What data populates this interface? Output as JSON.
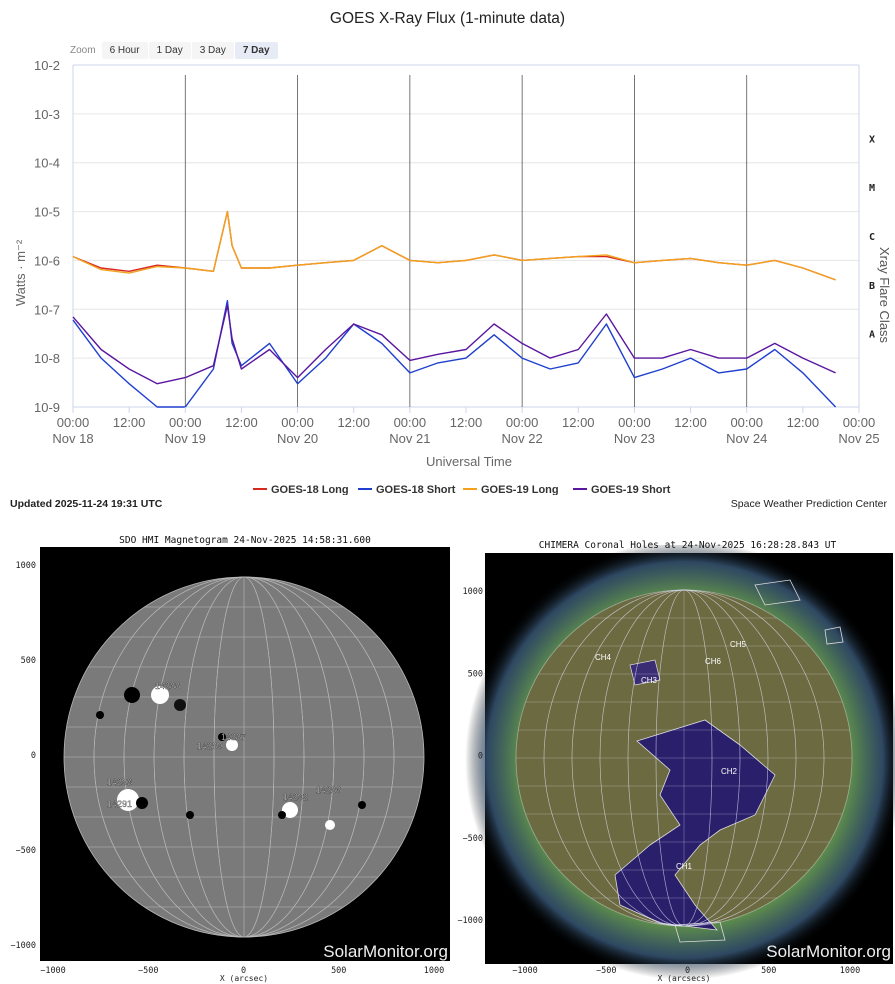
{
  "chart_title": "GOES X-Ray Flux (1-minute data)",
  "zoom": {
    "label": "Zoom",
    "buttons": [
      "6 Hour",
      "1 Day",
      "3 Day",
      "7 Day"
    ],
    "active": "7 Day"
  },
  "legend": [
    "GOES-18 Long",
    "GOES-18 Short",
    "GOES-19 Long",
    "GOES-19 Short"
  ],
  "updated_text": "Updated 2025-11-24 19:31 UTC",
  "credit_text": "Space Weather Prediction Center",
  "colors": {
    "goes18_long": "#d6281e",
    "goes18_short": "#1f3fcf",
    "goes19_long": "#f2a21c",
    "goes19_short": "#5a16a0"
  },
  "chart_data": [
    {
      "type": "line",
      "title": "GOES X-Ray Flux (1-minute data)",
      "xlabel": "Universal Time",
      "ylabel": "Watts · m⁻²",
      "y2label": "Xray Flare Class",
      "y_scale": "log",
      "ylim": [
        1e-09,
        0.01
      ],
      "y_ticks": [
        {
          "base": "10",
          "exp": "-2"
        },
        {
          "base": "10",
          "exp": "-3"
        },
        {
          "base": "10",
          "exp": "-4"
        },
        {
          "base": "10",
          "exp": "-5"
        },
        {
          "base": "10",
          "exp": "-6"
        },
        {
          "base": "10",
          "exp": "-7"
        },
        {
          "base": "10",
          "exp": "-8"
        },
        {
          "base": "10",
          "exp": "-9"
        }
      ],
      "flare_classes": [
        {
          "label": "X",
          "value": 0.0001
        },
        {
          "label": "M",
          "value": 1e-05
        },
        {
          "label": "C",
          "value": 1e-06
        },
        {
          "label": "B",
          "value": 1e-07
        },
        {
          "label": "A",
          "value": 1e-08
        }
      ],
      "x_ticks": [
        {
          "time": "00:00",
          "date": "Nov 18"
        },
        {
          "time": "12:00",
          "date": ""
        },
        {
          "time": "00:00",
          "date": "Nov 19"
        },
        {
          "time": "12:00",
          "date": ""
        },
        {
          "time": "00:00",
          "date": "Nov 20"
        },
        {
          "time": "12:00",
          "date": ""
        },
        {
          "time": "00:00",
          "date": "Nov 21"
        },
        {
          "time": "12:00",
          "date": ""
        },
        {
          "time": "00:00",
          "date": "Nov 22"
        },
        {
          "time": "12:00",
          "date": ""
        },
        {
          "time": "00:00",
          "date": "Nov 23"
        },
        {
          "time": "12:00",
          "date": ""
        },
        {
          "time": "00:00",
          "date": "Nov 24"
        },
        {
          "time": "12:00",
          "date": ""
        },
        {
          "time": "00:00",
          "date": "Nov 25"
        }
      ],
      "x_range": [
        "2025-11-18 00:00",
        "2025-11-25 00:00"
      ],
      "series_x": [
        "2025-11-18 00:00",
        "2025-11-18 06:00",
        "2025-11-18 12:00",
        "2025-11-18 18:00",
        "2025-11-19 00:00",
        "2025-11-19 06:00",
        "2025-11-19 09:00",
        "2025-11-19 10:00",
        "2025-11-19 12:00",
        "2025-11-19 18:00",
        "2025-11-20 00:00",
        "2025-11-20 06:00",
        "2025-11-20 12:00",
        "2025-11-20 18:00",
        "2025-11-21 00:00",
        "2025-11-21 06:00",
        "2025-11-21 12:00",
        "2025-11-21 18:00",
        "2025-11-22 00:00",
        "2025-11-22 06:00",
        "2025-11-22 12:00",
        "2025-11-22 18:00",
        "2025-11-23 00:00",
        "2025-11-23 06:00",
        "2025-11-23 12:00",
        "2025-11-23 18:00",
        "2025-11-24 00:00",
        "2025-11-24 06:00",
        "2025-11-24 12:00",
        "2025-11-24 19:00"
      ],
      "series": [
        {
          "name": "GOES-18 Long",
          "color": "#d6281e",
          "values": [
            1.2e-06,
            7e-07,
            6e-07,
            8e-07,
            7e-07,
            6e-07,
            1e-05,
            2e-06,
            7e-07,
            7e-07,
            8e-07,
            9e-07,
            1e-06,
            2e-06,
            1e-06,
            9e-07,
            1e-06,
            1.3e-06,
            1e-06,
            1.1e-06,
            1.2e-06,
            1.2e-06,
            9e-07,
            1e-06,
            1.1e-06,
            9e-07,
            8e-07,
            1e-06,
            7e-07,
            4e-07
          ]
        },
        {
          "name": "GOES-18 Short",
          "color": "#1f3fcf",
          "values": [
            6e-08,
            1e-08,
            3e-09,
            1e-09,
            1e-09,
            6e-09,
            1.5e-07,
            2e-08,
            7e-09,
            2e-08,
            3e-09,
            1e-08,
            5e-08,
            2e-08,
            5e-09,
            8e-09,
            1e-08,
            3e-08,
            1e-08,
            6e-09,
            8e-09,
            5e-08,
            4e-09,
            6e-09,
            1e-08,
            5e-09,
            6e-09,
            1.5e-08,
            5e-09,
            1e-09
          ]
        },
        {
          "name": "GOES-19 Long",
          "color": "#f2a21c",
          "values": [
            1.2e-06,
            6.5e-07,
            5.5e-07,
            7.5e-07,
            7e-07,
            6e-07,
            1e-05,
            2e-06,
            7e-07,
            7e-07,
            8e-07,
            9e-07,
            1e-06,
            2e-06,
            1e-06,
            9e-07,
            1e-06,
            1.3e-06,
            1e-06,
            1.1e-06,
            1.2e-06,
            1.3e-06,
            9e-07,
            1e-06,
            1.1e-06,
            9e-07,
            8e-07,
            1e-06,
            7e-07,
            4e-07
          ]
        },
        {
          "name": "GOES-19 Short",
          "color": "#5a16a0",
          "values": [
            7e-08,
            1.5e-08,
            6e-09,
            3e-09,
            4e-09,
            7e-09,
            1.2e-07,
            2.5e-08,
            6e-09,
            1.5e-08,
            4e-09,
            1.5e-08,
            5e-08,
            3e-08,
            9e-09,
            1.2e-08,
            1.5e-08,
            5e-08,
            2e-08,
            1e-08,
            1.5e-08,
            8e-08,
            1e-08,
            1e-08,
            1.5e-08,
            1e-08,
            1e-08,
            2e-08,
            1e-08,
            5e-09
          ]
        }
      ]
    }
  ],
  "magnetogram": {
    "title": "SDO HMI Magnetogram 24-Nov-2025 14:58:31.600",
    "xlabel": "X (arcsec)",
    "x_ticks": [
      "−1000",
      "−500",
      "0",
      "500",
      "1000"
    ],
    "y_ticks": [
      "1000",
      "500",
      "0",
      "−500",
      "−1000"
    ],
    "watermark": "SolarMonitor.org",
    "regions": [
      "14288",
      "14287",
      "14289",
      "14293",
      "14291",
      "14292",
      "14286"
    ]
  },
  "coronal_holes": {
    "title": "CHIMERA Coronal Holes at 24-Nov-2025 16:28:28.843 UT",
    "xlabel": "X (arcsecs)",
    "x_ticks": [
      "−1000",
      "−500",
      "0",
      "500",
      "1000"
    ],
    "y_ticks": [
      "1000",
      "500",
      "0",
      "−500",
      "−1000"
    ],
    "watermark": "SolarMonitor.org",
    "holes": [
      "CH1",
      "CH2",
      "CH3",
      "CH4",
      "CH5",
      "CH6"
    ]
  }
}
